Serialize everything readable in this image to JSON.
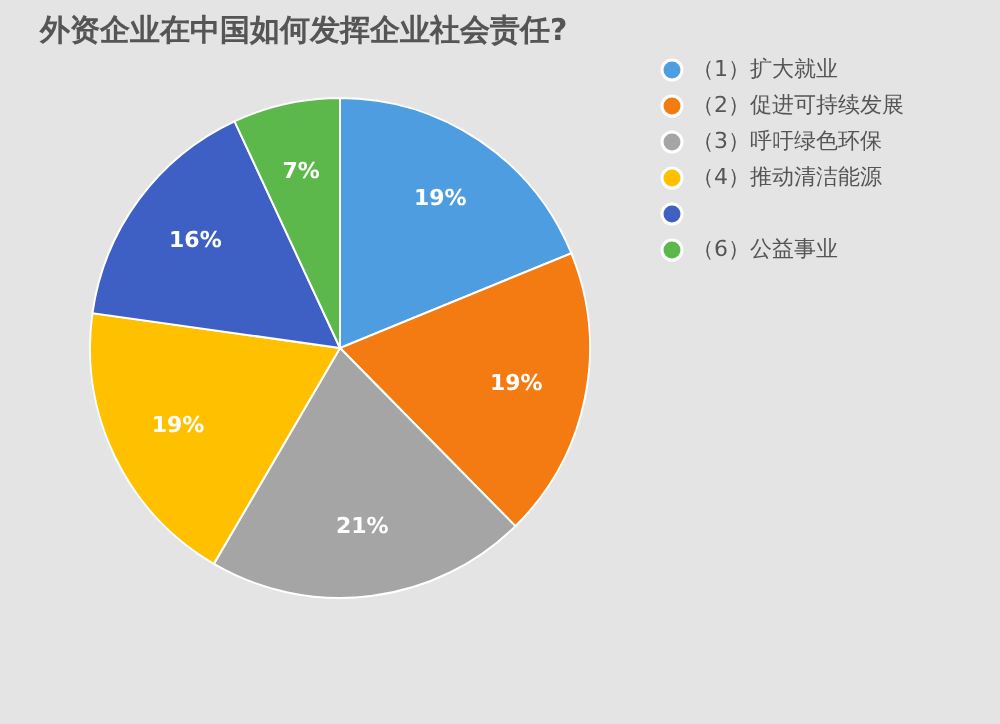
{
  "chart_data": {
    "type": "pie",
    "title": "外资企业在中国如何发挥企业社会责任?",
    "categories": [
      "（1）扩大就业",
      "（2）促进可持续发展",
      "（3）呼吁绿色环保",
      "（4）推动清洁能源",
      null,
      "（6）公益事业"
    ],
    "values": [
      19,
      19,
      21,
      19,
      16,
      7
    ],
    "colors": [
      "#4e9de0",
      "#f47a12",
      "#a5a5a5",
      "#ffc000",
      "#3e5fc4",
      "#5cb84a"
    ],
    "value_labels": [
      "19%",
      "19%",
      "21%",
      "19%",
      "16%",
      "7%"
    ],
    "legend": "right"
  }
}
